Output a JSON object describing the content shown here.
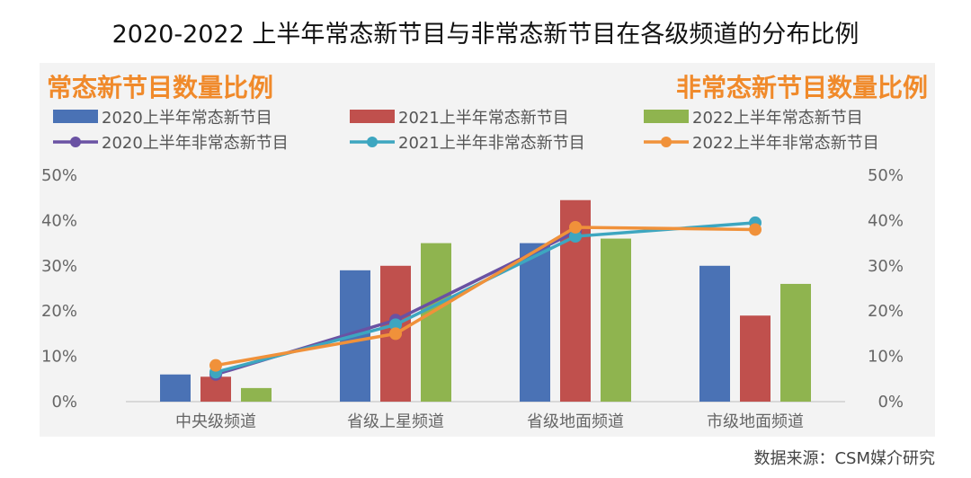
{
  "page_title": "2020-2022 上半年常态新节目与非常态新节目在各级频道的分布比例",
  "source": "数据来源：CSM媒介研究",
  "colors": {
    "heading": "#f08a2b",
    "bar_2020": "#4a72b5",
    "bar_2021": "#c0504d",
    "bar_2022": "#8fb44f",
    "line_2020": "#6a52a3",
    "line_2021": "#3da6c0",
    "line_2022": "#f0913a",
    "axis_text": "#666666",
    "legend_text": "#555555"
  },
  "chart_data": {
    "type": "bar",
    "left_heading": "常态新节目数量比例",
    "right_heading": "非常态新节目数量比例",
    "categories": [
      "中央级频道",
      "省级上星频道",
      "省级地面频道",
      "市级地面频道"
    ],
    "ylim": [
      0,
      50
    ],
    "yticks": [
      "0%",
      "10%",
      "20%",
      "30%",
      "40%",
      "50%"
    ],
    "grid": false,
    "legend_position": "top",
    "bar_series": [
      {
        "name": "2020上半年常态新节目",
        "values": [
          6,
          29,
          35,
          30
        ]
      },
      {
        "name": "2021上半年常态新节目",
        "values": [
          5.5,
          30,
          44.5,
          19
        ]
      },
      {
        "name": "2022上半年常态新节目",
        "values": [
          3,
          35,
          36,
          26
        ]
      }
    ],
    "line_series": [
      {
        "name": "2020上半年非常态新节目",
        "values": [
          6,
          18,
          37.5,
          null
        ]
      },
      {
        "name": "2021上半年非常态新节目",
        "values": [
          6.5,
          17,
          36.5,
          39.5
        ]
      },
      {
        "name": "2022上半年非常态新节目",
        "values": [
          8,
          15,
          38.5,
          38
        ]
      }
    ]
  }
}
